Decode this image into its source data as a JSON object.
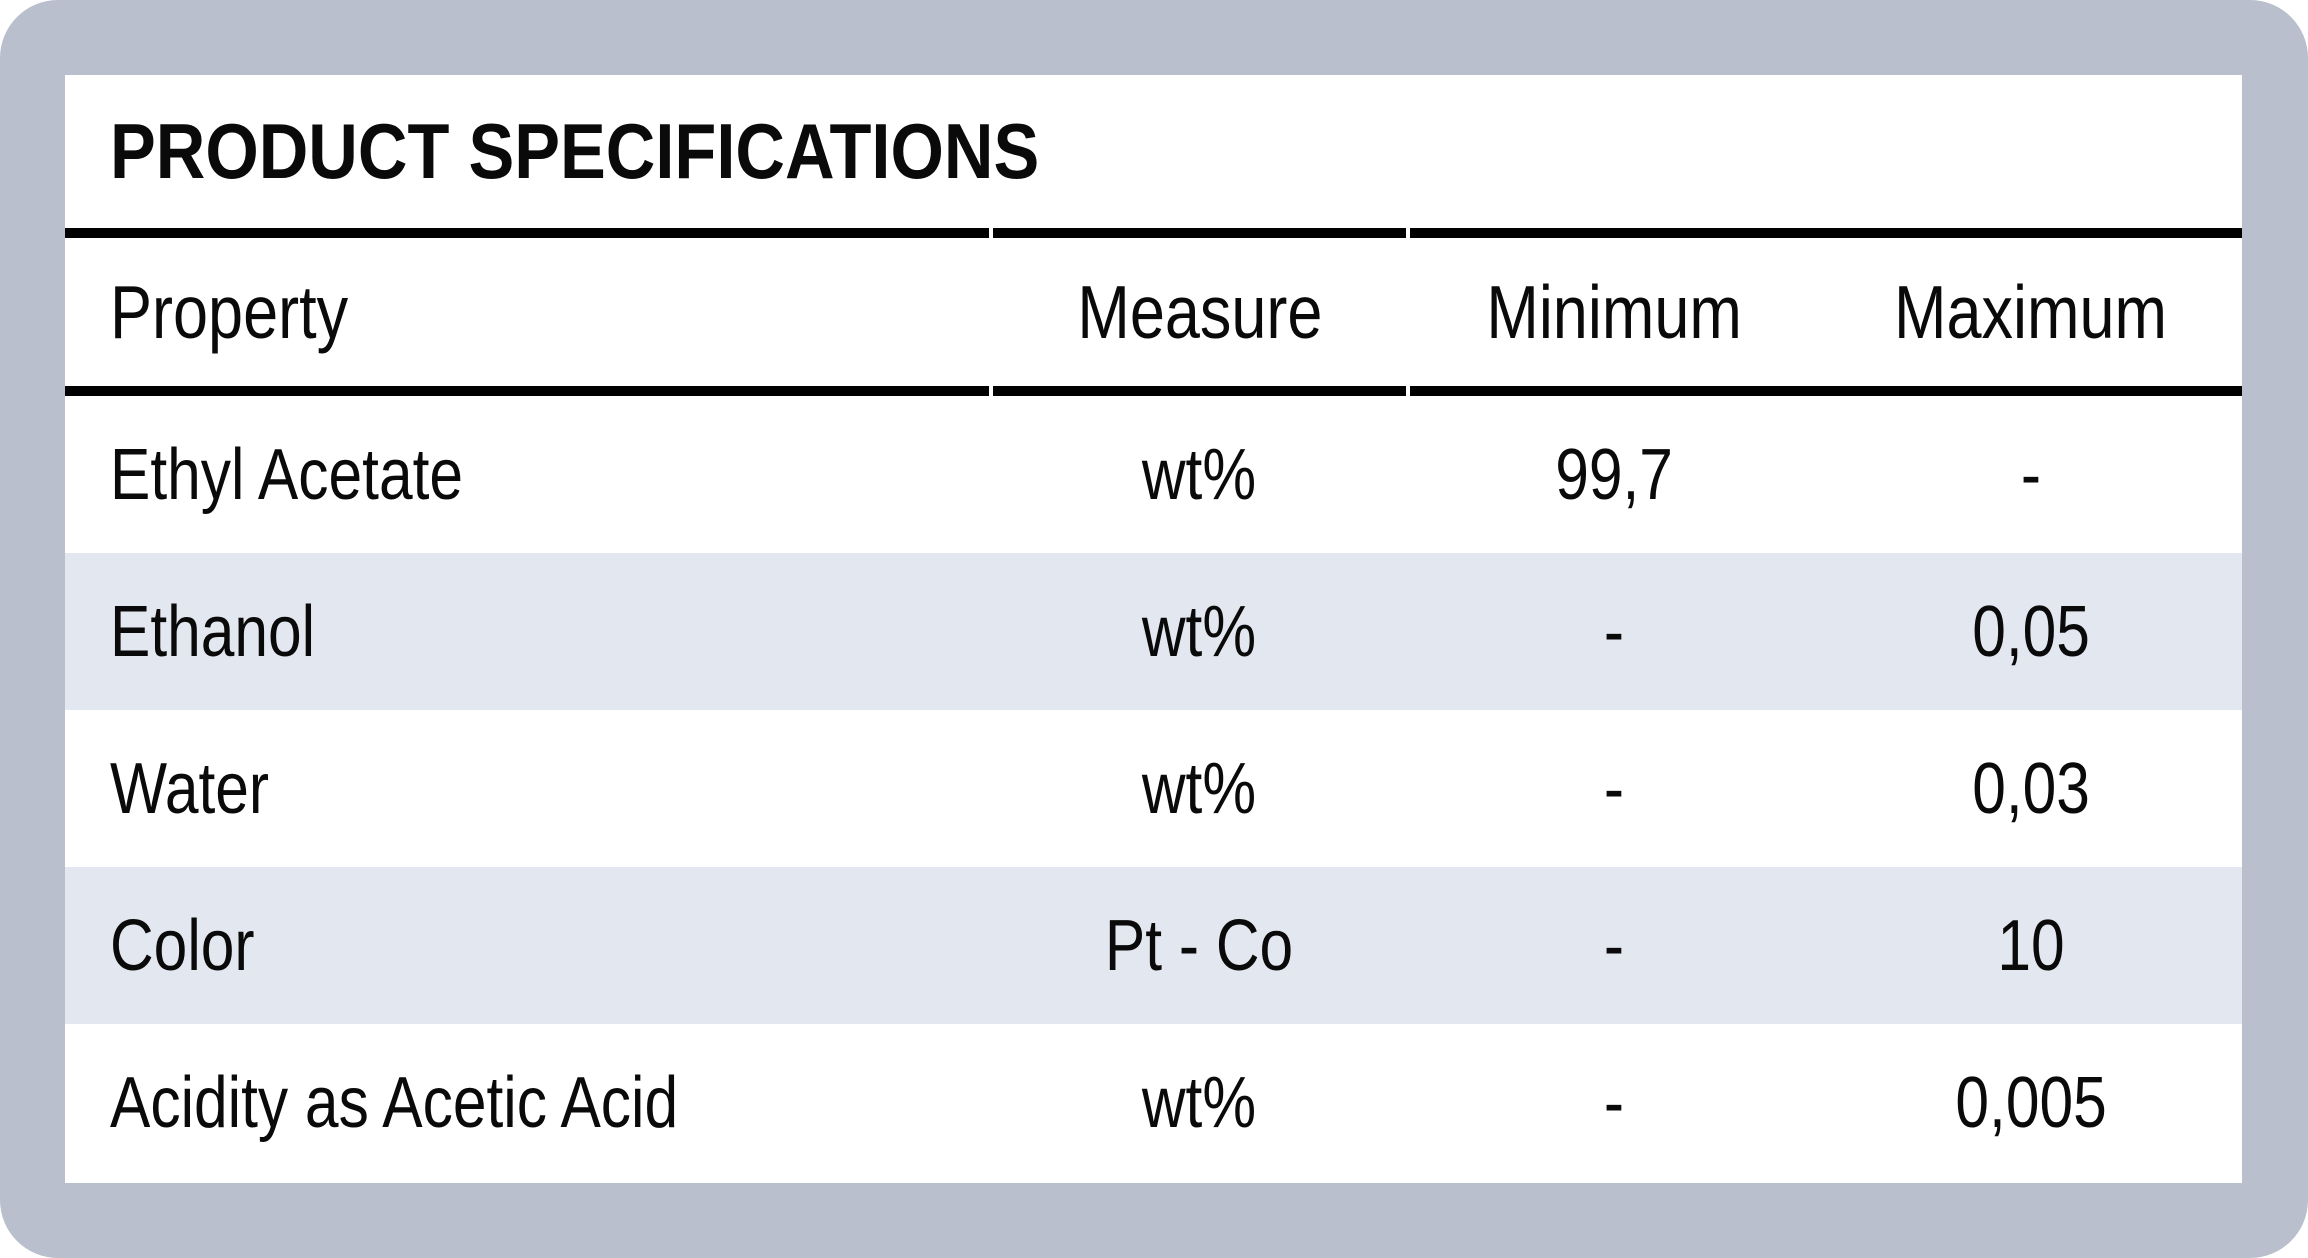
{
  "title": "PRODUCT SPECIFICATIONS",
  "colors": {
    "background": "#b9bfcc",
    "card": "#ffffff",
    "stripe": "#e3e7f0",
    "rule": "#000000",
    "text": "#0a0a0a"
  },
  "table": {
    "columns": [
      "Property",
      "Measure",
      "Minimum",
      "Maximum"
    ],
    "rows": [
      {
        "property": "Ethyl Acetate",
        "measure": "wt%",
        "minimum": "99,7",
        "maximum": "-"
      },
      {
        "property": "Ethanol",
        "measure": "wt%",
        "minimum": "-",
        "maximum": "0,05"
      },
      {
        "property": "Water",
        "measure": "wt%",
        "minimum": "-",
        "maximum": "0,03"
      },
      {
        "property": "Color",
        "measure": "Pt - Co",
        "minimum": "-",
        "maximum": "10"
      },
      {
        "property": "Acidity as Acetic Acid",
        "measure": "wt%",
        "minimum": "-",
        "maximum": "0,005"
      }
    ]
  }
}
